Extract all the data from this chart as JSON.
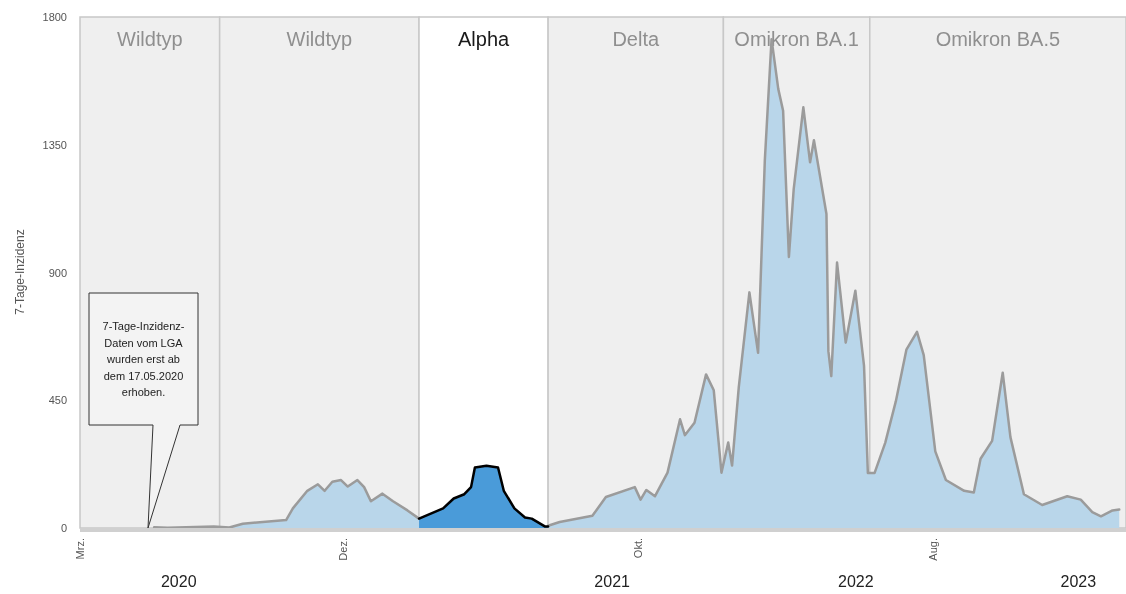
{
  "chart_data": {
    "type": "area",
    "ylabel": "7-Tage-Inzidenz",
    "xlim": [
      "2020-03-01",
      "2023-02-20"
    ],
    "xticks": [
      {
        "value": "2020-06-11",
        "label": "2020"
      },
      {
        "value": "2021-09-04",
        "label": "2021"
      },
      {
        "value": "2022-05-15",
        "label": "2022"
      },
      {
        "value": "2023-01-01",
        "label": "2023"
      }
    ],
    "ylim": [
      0,
      1800
    ],
    "yticks": [
      0,
      450,
      900,
      1350,
      1800
    ],
    "grid": false,
    "bands": [
      {
        "axis": "x",
        "from": "2020-03-01",
        "to": "2020-07-24",
        "label": "Wildtyp",
        "color": "#efefef"
      },
      {
        "axis": "x",
        "from": "2020-07-24",
        "to": "2021-02-16",
        "label": "Wildtyp",
        "color": "#efefef"
      },
      {
        "axis": "x",
        "from": "2021-02-16",
        "to": "2021-06-30",
        "label": "Alpha",
        "color": "#ffffff"
      },
      {
        "axis": "x",
        "from": "2021-06-30",
        "to": "2021-12-29",
        "label": "Delta",
        "color": "#efefef"
      },
      {
        "axis": "x",
        "from": "2021-12-29",
        "to": "2022-05-30",
        "label": "Omikron BA.1",
        "color": "#efefef"
      },
      {
        "axis": "x",
        "from": "2022-05-30",
        "to": "2023-02-20",
        "label": "Omikron BA.5",
        "color": "#efefef"
      }
    ],
    "annotations": [
      "7-Tage-Inzidenz-Daten vom LGA wurden erst ab dem 17.05.2020 erhoben.",
      "Mrz.",
      "Dez.",
      "Okt.",
      "Aug."
    ],
    "series": [
      {
        "color": "#b9d6ea",
        "x": [
          "2020-05-17",
          "2020-05-31",
          "2020-07-18",
          "2020-08-03",
          "2020-08-17",
          "2020-10-01",
          "2020-10-08",
          "2020-10-23",
          "2020-11-03",
          "2020-11-10",
          "2020-11-18",
          "2020-11-27",
          "2020-12-04",
          "2020-12-14",
          "2020-12-21",
          "2020-12-28",
          "2021-01-09",
          "2021-01-20",
          "2021-02-04",
          "2021-02-16",
          "2021-04-15",
          "2021-06-30",
          "2021-07-12",
          "2021-08-15",
          "2021-08-29",
          "2021-09-28",
          "2021-10-04",
          "2021-10-10",
          "2021-10-19",
          "2021-11-01",
          "2021-11-14",
          "2021-11-19",
          "2021-11-29",
          "2021-12-11",
          "2021-12-19",
          "2021-12-27",
          "2022-01-03",
          "2022-01-07",
          "2022-01-14",
          "2022-01-25",
          "2022-02-03",
          "2022-02-10",
          "2022-02-17",
          "2022-02-24",
          "2022-03-01",
          "2022-03-07",
          "2022-03-12",
          "2022-03-22",
          "2022-03-29",
          "2022-04-02",
          "2022-04-15",
          "2022-04-17",
          "2022-04-20",
          "2022-04-26",
          "2022-05-05",
          "2022-05-15",
          "2022-05-24",
          "2022-05-28",
          "2022-06-04",
          "2022-06-15",
          "2022-06-26",
          "2022-07-07",
          "2022-07-18",
          "2022-07-25",
          "2022-08-06",
          "2022-08-17",
          "2022-09-05",
          "2022-09-15",
          "2022-09-22",
          "2022-10-04",
          "2022-10-15",
          "2022-10-23",
          "2022-11-06",
          "2022-11-25",
          "2022-12-21",
          "2023-01-04",
          "2023-01-16",
          "2023-01-25",
          "2023-02-06",
          "2023-02-13"
        ],
        "values": [
          3,
          1,
          5,
          2,
          15,
          28,
          69,
          131,
          154,
          131,
          163,
          169,
          146,
          169,
          144,
          94,
          121,
          94,
          62,
          33,
          null,
          8,
          21,
          43,
          109,
          144,
          100,
          134,
          112,
          195,
          383,
          327,
          371,
          541,
          485,
          195,
          301,
          220,
          497,
          830,
          617,
          1294,
          1722,
          1546,
          1470,
          955,
          1194,
          1482,
          1288,
          1366,
          1106,
          623,
          535,
          935,
          653,
          836,
          572,
          194,
          194,
          300,
          446,
          628,
          691,
          609,
          270,
          169,
          131,
          125,
          244,
          307,
          547,
          320,
          119,
          81,
          112,
          100,
          56,
          41,
          62,
          65
        ]
      },
      {
        "color": "#4a9bd9",
        "x": [
          "2021-02-16",
          "2021-03-13",
          "2021-03-24",
          "2021-04-04",
          "2021-04-11",
          "2021-04-15",
          "2021-04-27",
          "2021-05-09",
          "2021-05-15",
          "2021-05-26",
          "2021-06-06",
          "2021-06-13",
          "2021-06-27",
          "2021-06-30"
        ],
        "values": [
          33,
          69,
          104,
          119,
          144,
          213,
          219,
          213,
          131,
          69,
          37,
          33,
          5,
          5
        ]
      }
    ]
  }
}
